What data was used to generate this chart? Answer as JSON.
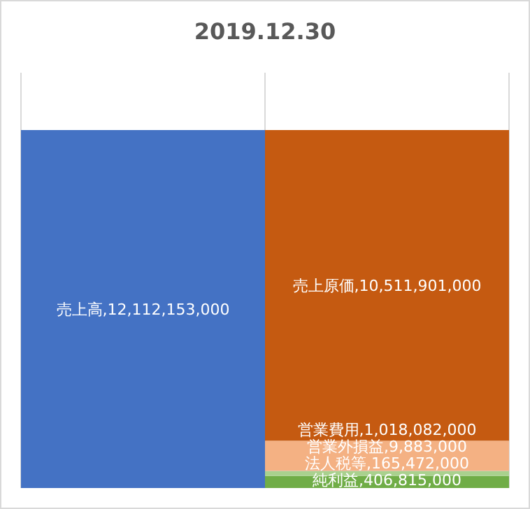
{
  "chart_data": {
    "type": "bar",
    "title": "2019.12.30",
    "categories": [
      null,
      null
    ],
    "stacked": true,
    "grid": "x",
    "series": [
      {
        "color": "#4472c4",
        "values": [
          12112153000,
          null
        ],
        "value_labels": [
          "売上高,12,112,153,000",
          null
        ]
      },
      {
        "color": "#70ad47",
        "values": [
          null,
          406815000
        ],
        "value_labels": [
          null,
          "純利益,406,815,000"
        ]
      },
      {
        "color": "#a9d18e",
        "values": [
          null,
          165472000
        ],
        "value_labels": [
          null,
          "法人税等,165,472,000"
        ]
      },
      {
        "color": "#a5a5a5",
        "values": [
          null,
          9883000
        ],
        "value_labels": [
          null,
          "営業外損益,9,883,000"
        ]
      },
      {
        "color": "#f4b183",
        "values": [
          null,
          1018082000
        ],
        "value_labels": [
          null,
          "営業費用,1,018,082,000"
        ]
      },
      {
        "color": "#c55a11",
        "values": [
          null,
          10511901000
        ],
        "value_labels": [
          null,
          "売上原価,10,511,901,000"
        ]
      }
    ]
  }
}
